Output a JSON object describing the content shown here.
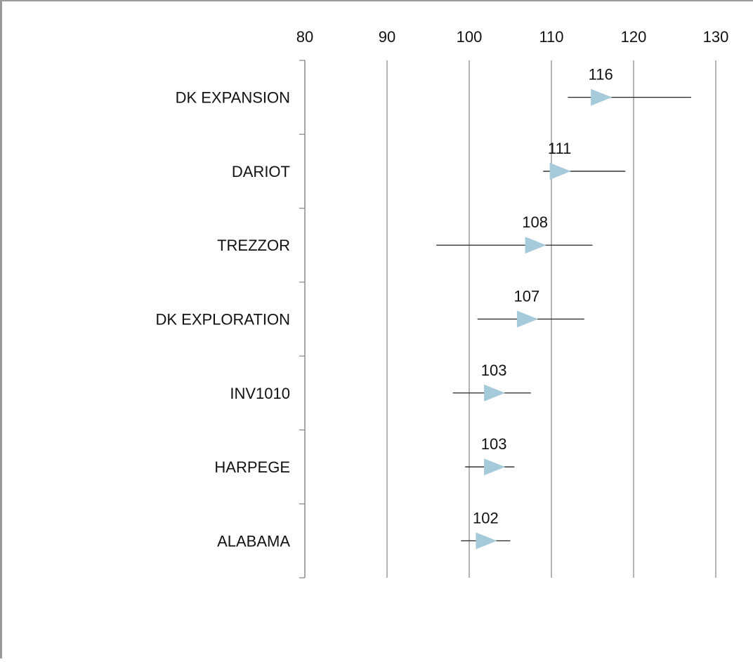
{
  "chart_data": {
    "type": "scatter",
    "orientation": "horizontal",
    "categories": [
      "DK EXPANSION",
      "DARIOT",
      "TREZZOR",
      "DK EXPLORATION",
      "INV1010",
      "HARPEGE",
      "ALABAMA"
    ],
    "values": [
      116,
      111,
      108,
      107,
      103,
      103,
      102
    ],
    "data_labels": [
      "116",
      "111",
      "108",
      "107",
      "103",
      "103",
      "102"
    ],
    "error_low": [
      112,
      109,
      96,
      101,
      98,
      99.5,
      99
    ],
    "error_high": [
      127,
      119,
      115,
      114,
      107.5,
      105.5,
      105
    ],
    "xlim": [
      80,
      130
    ],
    "x_ticks": [
      "80",
      "90",
      "100",
      "110",
      "120",
      "130"
    ],
    "x_tick_values": [
      80,
      90,
      100,
      110,
      120,
      130
    ],
    "x_axis_position": "top",
    "grid": true,
    "marker": "triangle-right",
    "colors": {
      "marker": "#a5cad9",
      "grid": "#8c8c8c",
      "error_bar": "#222222",
      "text": "#111111"
    },
    "title": "",
    "xlabel": "",
    "ylabel": ""
  }
}
